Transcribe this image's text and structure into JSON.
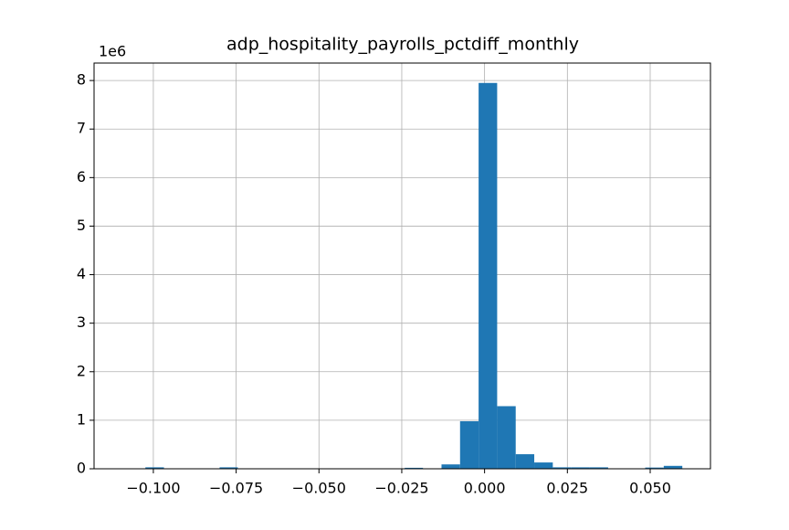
{
  "chart_data": {
    "type": "histogram",
    "title": "adp_hospitality_payrolls_pctdiff_monthly",
    "bins": [
      -0.1024,
      -0.0968,
      -0.0912,
      -0.0856,
      -0.08,
      -0.0745,
      -0.0689,
      -0.0633,
      -0.0577,
      -0.0521,
      -0.0465,
      -0.0409,
      -0.0353,
      -0.0297,
      -0.0241,
      -0.0186,
      -0.013,
      -0.0074,
      -0.0018,
      0.0038,
      0.0094,
      0.015,
      0.0206,
      0.0262,
      0.0317,
      0.0373,
      0.0429,
      0.0485,
      0.0541,
      0.0597
    ],
    "counts": [
      30000,
      0,
      0,
      0,
      30000,
      0,
      0,
      0,
      0,
      0,
      0,
      0,
      0,
      0,
      20000,
      0,
      90000,
      980000,
      7950000,
      1290000,
      300000,
      130000,
      30000,
      30000,
      30000,
      0,
      0,
      25000,
      60000
    ],
    "color": "#1f77b4",
    "xlim": [
      -0.1179,
      0.0682
    ],
    "ylim": [
      0,
      8360000
    ],
    "xticks": [
      {
        "value": -0.1,
        "label": "−0.100"
      },
      {
        "value": -0.075,
        "label": "−0.075"
      },
      {
        "value": -0.05,
        "label": "−0.050"
      },
      {
        "value": -0.025,
        "label": "−0.025"
      },
      {
        "value": 0,
        "label": "0.000"
      },
      {
        "value": 0.025,
        "label": "0.025"
      },
      {
        "value": 0.05,
        "label": "0.050"
      }
    ],
    "yticks": [
      0,
      {
        "value": 1000000,
        "label": "1"
      },
      {
        "value": 2000000,
        "label": "2"
      },
      {
        "value": 3000000,
        "label": "3"
      },
      {
        "value": 4000000,
        "label": "4"
      },
      {
        "value": 5000000,
        "label": "5"
      },
      {
        "value": 6000000,
        "label": "6"
      },
      {
        "value": 7000000,
        "label": "7"
      },
      {
        "value": 8000000,
        "label": "8"
      }
    ],
    "y_offset_label": "1e6",
    "grid": true
  }
}
